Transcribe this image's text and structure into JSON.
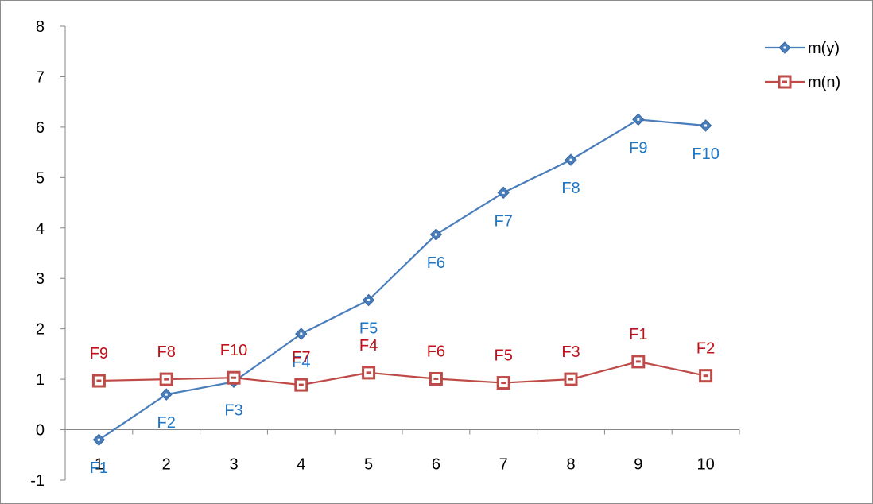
{
  "chart_data": {
    "type": "line",
    "x": [
      1,
      2,
      3,
      4,
      5,
      6,
      7,
      8,
      9,
      10
    ],
    "xlim": [
      0.5,
      10.5
    ],
    "ylim": [
      -1,
      8
    ],
    "y_ticks": [
      -1,
      0,
      1,
      2,
      3,
      4,
      5,
      6,
      7,
      8
    ],
    "x_ticks": [
      1,
      2,
      3,
      4,
      5,
      6,
      7,
      8,
      9,
      10
    ],
    "legend_position": "top-right",
    "grid": false,
    "series": [
      {
        "name": "m(y)",
        "color": "#4a7ebb",
        "label_color": "#1f77c4",
        "marker": "diamond",
        "values": [
          -0.2,
          0.7,
          0.95,
          1.9,
          2.57,
          3.87,
          4.7,
          5.35,
          6.15,
          6.03
        ],
        "point_labels": [
          "F1",
          "F2",
          "F3",
          "F4",
          "F5",
          "F6",
          "F7",
          "F8",
          "F9",
          "F10"
        ],
        "label_position": "below"
      },
      {
        "name": "m(n)",
        "color": "#be4b48",
        "label_color": "#c0101a",
        "marker": "square",
        "values": [
          0.97,
          1.0,
          1.03,
          0.89,
          1.13,
          1.01,
          0.93,
          1.0,
          1.35,
          1.07
        ],
        "point_labels": [
          "F9",
          "F8",
          "F10",
          "F7",
          "F4",
          "F6",
          "F5",
          "F3",
          "F1",
          "F2"
        ],
        "label_position": "above"
      }
    ]
  }
}
